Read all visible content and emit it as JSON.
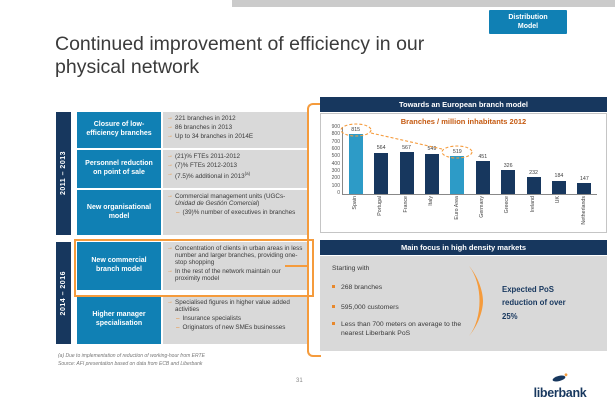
{
  "slide": {
    "title": "Continued improvement of efficiency in our physical network",
    "badge": {
      "line1": "Distribution",
      "line2": "Model"
    },
    "page_number": "31"
  },
  "icons": {
    "arrow_bullet": "→",
    "dash_bullet": "–"
  },
  "timeline": {
    "period_top": "2011 – 2013",
    "period_bottom": "2014 – 2016"
  },
  "left_panel": {
    "rows": [
      {
        "title": "Closure of low-efficiency branches",
        "bullets": [
          "221 branches in 2012",
          "86 branches in 2013",
          "Up to 34 branches in 2014E"
        ]
      },
      {
        "title": "Personnel reduction on point of sale",
        "bullets": [
          "(21)% FTEs 2011-2012",
          "(7)% FTEs 2012-2013",
          "(7.5)% additional in 2013"
        ],
        "footnote_marker": "(a)"
      },
      {
        "title": "New organisational model",
        "bullet_parts": {
          "prefix": "Commercial management units (UGCs- ",
          "italic": "Unidad de Gestión Comercial",
          "suffix": ")"
        },
        "sub_bullets": [
          "(39)% number of executives in branches"
        ]
      },
      {
        "title": "New commercial branch model",
        "bullets": [
          "Concentration of clients in urban areas in less number and larger branches, providing one-stop shopping",
          "In the rest of the network maintain our proximity model"
        ],
        "highlighted": true
      },
      {
        "title": "Higher manager specialisation",
        "bullets": [
          "Specialised figures in higher value added activities"
        ],
        "sub_bullets": [
          "Insurance specialists",
          "Originators of new SMEs businesses"
        ]
      }
    ]
  },
  "right_panel": {
    "branch_model_header": "Towards an European branch model",
    "focus_header": "Main focus in high density markets",
    "focus": {
      "intro": "Starting with",
      "bullets": [
        "268 branches",
        "595,000 customers",
        "Less than 700 meters on average to the nearest Liberbank PoS"
      ],
      "callout": "Expected PoS reduction of over 25%"
    }
  },
  "chart_data": {
    "type": "bar",
    "title": "Branches / million inhabitants 2012",
    "categories": [
      "Spain",
      "Portugal",
      "France",
      "Italy",
      "Euro Area",
      "Germany",
      "Greece",
      "Ireland",
      "UK",
      "Netherlands"
    ],
    "values": [
      815,
      564,
      567,
      549,
      519,
      451,
      326,
      232,
      184,
      147
    ],
    "highlighted_categories": [
      "Spain",
      "Euro Area"
    ],
    "ylim": [
      0,
      900
    ],
    "ytick_step": 100,
    "grid": false,
    "bar_color": "#17375e",
    "highlight_color": "#2d9bc7",
    "annotation": "Dashed orange ellipses circle Spain (815) and Euro Area (519), connected by a dashed line"
  },
  "footer": {
    "footnote": "(a)  Due to implementation of reduction of working-hour from ERTE",
    "source": "Source:  AFI presentation based on data from ECB and Liberbank",
    "logo_text": "liberbank"
  },
  "colors": {
    "navy": "#17375e",
    "accent_blue": "#1080b4",
    "orange": "#f59b3c",
    "bullet_orange": "#e8882c",
    "chart_title_orange": "#c55a11",
    "grey_box": "#d9d9d9"
  }
}
